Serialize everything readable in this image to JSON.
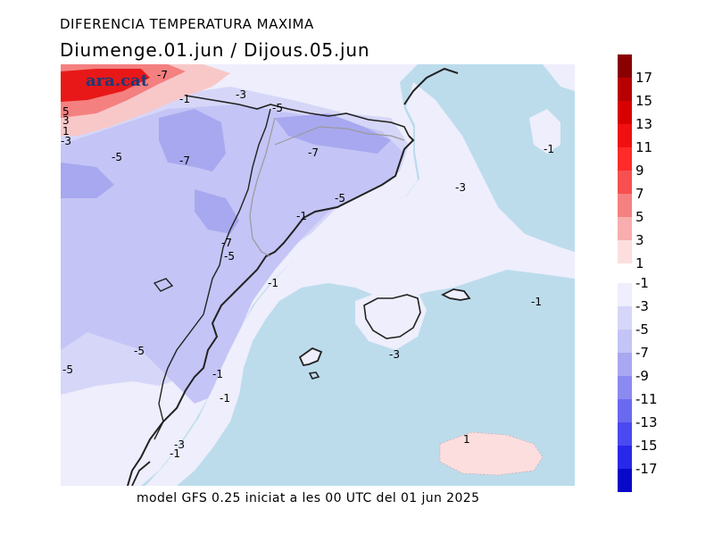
{
  "header": {
    "title": "DIFERENCIA TEMPERATURA MAXIMA",
    "subtitle": "Diumenge.01.jun / Dijous.05.jun"
  },
  "footer": {
    "text": "model GFS 0.25 iniciat a les 00 UTC del 01 jun 2025"
  },
  "logo": {
    "text": "ara.cat"
  },
  "map": {
    "colors": {
      "sea": "#bcdcec",
      "light_blue": "#eeeefc",
      "mid_blue": "#d6d6f8",
      "blue": "#c4c4f6",
      "deep_blue": "#a8a8f0",
      "red": "#e81818",
      "pink": "#f8c8c8",
      "light_pink": "#fcdede"
    },
    "contour_labels": [
      "-7",
      "-1",
      "-3",
      "5",
      "3",
      "1",
      "-3",
      "-5",
      "-7",
      "-5",
      "-7",
      "-5",
      "-1",
      "-3",
      "-7",
      "-5",
      "-1",
      "-1",
      "-1",
      "-3",
      "-5",
      "-5",
      "-1",
      "-1",
      "-3",
      "-1",
      "1"
    ]
  },
  "colorbar": {
    "positive": [
      {
        "label": "17",
        "color": "#8a0000"
      },
      {
        "label": "15",
        "color": "#b80000"
      },
      {
        "label": "13",
        "color": "#d80000"
      },
      {
        "label": "11",
        "color": "#f01010"
      },
      {
        "label": "9",
        "color": "#ff2a2a"
      },
      {
        "label": "7",
        "color": "#f65050"
      },
      {
        "label": "5",
        "color": "#f48080"
      },
      {
        "label": "3",
        "color": "#f8aeae"
      },
      {
        "label": "1",
        "color": "#fcdede"
      }
    ],
    "negative": [
      {
        "label": "-1",
        "color": "#eeeefc"
      },
      {
        "label": "-3",
        "color": "#d6d6f8"
      },
      {
        "label": "-5",
        "color": "#c4c4f6"
      },
      {
        "label": "-7",
        "color": "#a8a8f0"
      },
      {
        "label": "-9",
        "color": "#8a8af0"
      },
      {
        "label": "-11",
        "color": "#6a6af0"
      },
      {
        "label": "-13",
        "color": "#4a4af0"
      },
      {
        "label": "-15",
        "color": "#2828e8"
      },
      {
        "label": "-17",
        "color": "#0808c8"
      }
    ]
  }
}
